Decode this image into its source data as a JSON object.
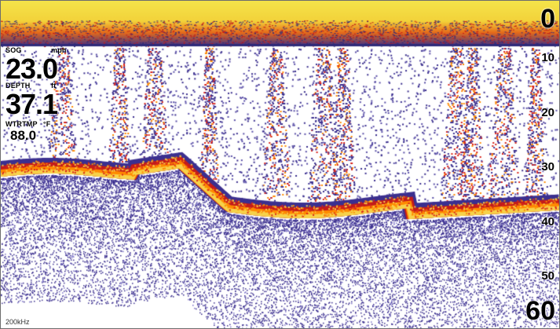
{
  "readouts": {
    "sog": {
      "label": "SOG",
      "unit": "mph",
      "value": "23.0"
    },
    "depth": {
      "label": "DEPTH",
      "unit": "ft",
      "value": "37.1"
    },
    "water_temp": {
      "label": "WTRTMP",
      "unit": "°F",
      "value": "88.0"
    }
  },
  "depth_scale": {
    "top": "0",
    "ticks": [
      "10",
      "20",
      "30",
      "40",
      "50"
    ],
    "bottom": "60"
  },
  "frequency": "200kHz",
  "colors": {
    "surface_band": "#f7e94a",
    "strong_return": "#ff8a00",
    "medium_return": "#d8231b",
    "weak_return": "#3b2f8f",
    "background": "#ffffff"
  }
}
